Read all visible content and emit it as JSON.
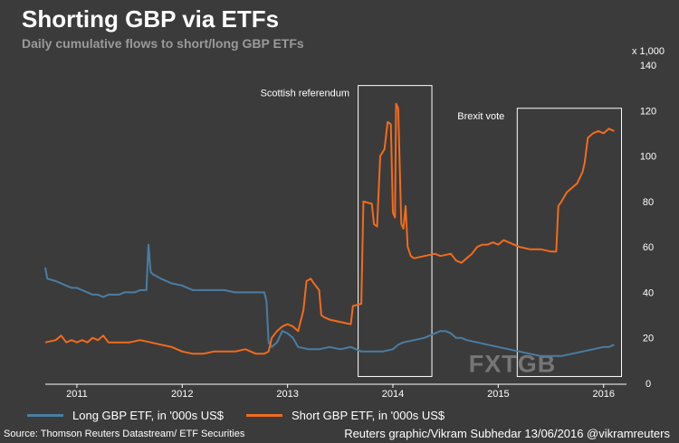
{
  "header": {
    "title": "Shorting GBP via ETFs",
    "subtitle": "Daily cumulative flows to short/long GBP ETFs"
  },
  "colors": {
    "background": "#3b3b3b",
    "long": "#4a7da3",
    "short": "#f26b1d",
    "text": "#ffffff",
    "subtitle": "#9a9a9a"
  },
  "chart_data": {
    "type": "line",
    "title": "Shorting GBP via ETFs",
    "subtitle": "Daily cumulative flows to short/long GBP ETFs",
    "xlabel": "",
    "ylabel": "",
    "y_unit_label": "x 1,000",
    "xlim": [
      2010.7,
      2016.2
    ],
    "ylim": [
      0,
      140
    ],
    "y_ticks": [
      0,
      20,
      40,
      60,
      80,
      100,
      120,
      140
    ],
    "x_ticks": [
      {
        "value": 2011.0,
        "label": "2011"
      },
      {
        "value": 2012.0,
        "label": "2012"
      },
      {
        "value": 2013.0,
        "label": "2013"
      },
      {
        "value": 2014.0,
        "label": "2014"
      },
      {
        "value": 2015.0,
        "label": "2015"
      },
      {
        "value": 2016.0,
        "label": "2016"
      }
    ],
    "series": [
      {
        "name": "Long GBP ETF, in '000s US$",
        "color": "#4a7da3",
        "points": [
          [
            2010.7,
            51
          ],
          [
            2010.72,
            46
          ],
          [
            2010.8,
            45
          ],
          [
            2010.85,
            44
          ],
          [
            2010.9,
            43
          ],
          [
            2010.95,
            42
          ],
          [
            2011.0,
            42
          ],
          [
            2011.05,
            41
          ],
          [
            2011.1,
            40
          ],
          [
            2011.15,
            39
          ],
          [
            2011.2,
            39
          ],
          [
            2011.25,
            38
          ],
          [
            2011.3,
            39
          ],
          [
            2011.35,
            39
          ],
          [
            2011.4,
            39
          ],
          [
            2011.45,
            40
          ],
          [
            2011.5,
            40
          ],
          [
            2011.55,
            40
          ],
          [
            2011.6,
            41
          ],
          [
            2011.66,
            41
          ],
          [
            2011.68,
            61
          ],
          [
            2011.7,
            49
          ],
          [
            2011.72,
            48
          ],
          [
            2011.8,
            46
          ],
          [
            2011.85,
            45
          ],
          [
            2011.9,
            44
          ],
          [
            2012.0,
            43
          ],
          [
            2012.05,
            42
          ],
          [
            2012.1,
            41
          ],
          [
            2012.2,
            41
          ],
          [
            2012.3,
            41
          ],
          [
            2012.4,
            41
          ],
          [
            2012.5,
            40
          ],
          [
            2012.6,
            40
          ],
          [
            2012.7,
            40
          ],
          [
            2012.78,
            40
          ],
          [
            2012.8,
            36
          ],
          [
            2012.82,
            18
          ],
          [
            2012.85,
            16
          ],
          [
            2012.9,
            18
          ],
          [
            2012.95,
            23
          ],
          [
            2013.0,
            22
          ],
          [
            2013.05,
            20
          ],
          [
            2013.1,
            16
          ],
          [
            2013.2,
            15
          ],
          [
            2013.3,
            15
          ],
          [
            2013.4,
            16
          ],
          [
            2013.5,
            15
          ],
          [
            2013.6,
            16
          ],
          [
            2013.7,
            14
          ],
          [
            2013.8,
            14
          ],
          [
            2013.9,
            14
          ],
          [
            2014.0,
            15
          ],
          [
            2014.05,
            17
          ],
          [
            2014.1,
            18
          ],
          [
            2014.2,
            19
          ],
          [
            2014.3,
            20
          ],
          [
            2014.4,
            22
          ],
          [
            2014.45,
            23
          ],
          [
            2014.5,
            23
          ],
          [
            2014.55,
            22
          ],
          [
            2014.6,
            20
          ],
          [
            2014.65,
            20
          ],
          [
            2014.7,
            19
          ],
          [
            2014.8,
            18
          ],
          [
            2014.9,
            17
          ],
          [
            2015.0,
            16
          ],
          [
            2015.1,
            15
          ],
          [
            2015.2,
            14
          ],
          [
            2015.3,
            13
          ],
          [
            2015.4,
            12
          ],
          [
            2015.5,
            12
          ],
          [
            2015.6,
            12
          ],
          [
            2015.7,
            13
          ],
          [
            2015.8,
            14
          ],
          [
            2015.9,
            15
          ],
          [
            2016.0,
            16
          ],
          [
            2016.05,
            16
          ],
          [
            2016.1,
            17
          ]
        ]
      },
      {
        "name": "Short GBP ETF, in '000s US$",
        "color": "#f26b1d",
        "points": [
          [
            2010.7,
            18
          ],
          [
            2010.8,
            19
          ],
          [
            2010.85,
            21
          ],
          [
            2010.9,
            18
          ],
          [
            2010.95,
            19
          ],
          [
            2011.0,
            18
          ],
          [
            2011.05,
            19
          ],
          [
            2011.1,
            18
          ],
          [
            2011.15,
            20
          ],
          [
            2011.2,
            19
          ],
          [
            2011.25,
            21
          ],
          [
            2011.3,
            18
          ],
          [
            2011.4,
            18
          ],
          [
            2011.5,
            18
          ],
          [
            2011.6,
            19
          ],
          [
            2011.7,
            18
          ],
          [
            2011.8,
            17
          ],
          [
            2011.9,
            16
          ],
          [
            2012.0,
            14
          ],
          [
            2012.1,
            13
          ],
          [
            2012.2,
            13
          ],
          [
            2012.3,
            14
          ],
          [
            2012.4,
            14
          ],
          [
            2012.5,
            14
          ],
          [
            2012.6,
            15
          ],
          [
            2012.7,
            13
          ],
          [
            2012.78,
            13
          ],
          [
            2012.82,
            14
          ],
          [
            2012.85,
            20
          ],
          [
            2012.9,
            23
          ],
          [
            2012.95,
            25
          ],
          [
            2013.0,
            26
          ],
          [
            2013.05,
            25
          ],
          [
            2013.1,
            23
          ],
          [
            2013.15,
            32
          ],
          [
            2013.18,
            45
          ],
          [
            2013.22,
            46
          ],
          [
            2013.25,
            44
          ],
          [
            2013.3,
            41
          ],
          [
            2013.32,
            30
          ],
          [
            2013.35,
            29
          ],
          [
            2013.4,
            28
          ],
          [
            2013.5,
            27
          ],
          [
            2013.6,
            26
          ],
          [
            2013.62,
            34
          ],
          [
            2013.7,
            35
          ],
          [
            2013.72,
            80
          ],
          [
            2013.8,
            79
          ],
          [
            2013.82,
            70
          ],
          [
            2013.85,
            69
          ],
          [
            2013.88,
            100
          ],
          [
            2013.92,
            103
          ],
          [
            2013.95,
            115
          ],
          [
            2013.98,
            114
          ],
          [
            2014.0,
            75
          ],
          [
            2014.02,
            73
          ],
          [
            2014.03,
            123
          ],
          [
            2014.05,
            121
          ],
          [
            2014.08,
            70
          ],
          [
            2014.1,
            68
          ],
          [
            2014.12,
            78
          ],
          [
            2014.14,
            60
          ],
          [
            2014.17,
            56
          ],
          [
            2014.2,
            55
          ],
          [
            2014.3,
            56
          ],
          [
            2014.4,
            57
          ],
          [
            2014.45,
            56
          ],
          [
            2014.55,
            57
          ],
          [
            2014.6,
            54
          ],
          [
            2014.65,
            53
          ],
          [
            2014.7,
            55
          ],
          [
            2014.75,
            57
          ],
          [
            2014.8,
            60
          ],
          [
            2014.85,
            61
          ],
          [
            2014.9,
            61
          ],
          [
            2014.95,
            62
          ],
          [
            2015.0,
            61
          ],
          [
            2015.05,
            63
          ],
          [
            2015.1,
            62
          ],
          [
            2015.15,
            61
          ],
          [
            2015.2,
            60
          ],
          [
            2015.3,
            59
          ],
          [
            2015.4,
            59
          ],
          [
            2015.5,
            58
          ],
          [
            2015.55,
            58
          ],
          [
            2015.57,
            78
          ],
          [
            2015.6,
            80
          ],
          [
            2015.65,
            84
          ],
          [
            2015.7,
            86
          ],
          [
            2015.75,
            88
          ],
          [
            2015.8,
            93
          ],
          [
            2015.82,
            97
          ],
          [
            2015.85,
            108
          ],
          [
            2015.9,
            110
          ],
          [
            2015.95,
            111
          ],
          [
            2016.0,
            110
          ],
          [
            2016.05,
            112
          ],
          [
            2016.1,
            111
          ]
        ]
      }
    ],
    "annotations": [
      {
        "label": "Scottish referendum",
        "x_start": 2013.67,
        "x_end": 2014.37,
        "y_top": 131
      },
      {
        "label": "Brexit vote",
        "x_start": 2015.18,
        "x_end": 2016.17,
        "y_top": 121
      }
    ],
    "watermark": "FXTGB",
    "legend_position": "bottom"
  },
  "legend": {
    "long_label": "Long GBP ETF, in '000s US$",
    "short_label": "Short GBP ETF, in '000s US$"
  },
  "footer": {
    "source": "Source: Thomson Reuters Datastream/ ETF Securities",
    "credit": "Reuters graphic/Vikram Subhedar 13/06/2016  @vikramreuters"
  }
}
